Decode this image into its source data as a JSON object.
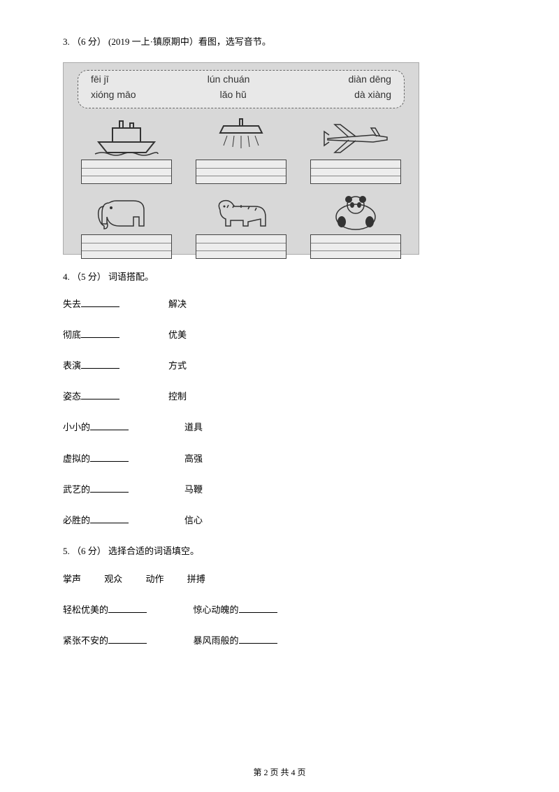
{
  "q3": {
    "header": "3. （6 分） (2019 一上·镇原期中）看图，选写音节。",
    "pinyin": {
      "r1a": "fēi jī",
      "r1b": "lún chuán",
      "r1c": "diàn dēng",
      "r2a": "xióng māo",
      "r2b": "lǎo hǔ",
      "r2c": "dà xiàng"
    }
  },
  "q4": {
    "header": "4. （5 分） 词语搭配。",
    "rows": [
      {
        "left": "失去",
        "right": "解决"
      },
      {
        "left": "彻底",
        "right": "优美"
      },
      {
        "left": "表演",
        "right": "方式"
      },
      {
        "left": "姿态",
        "right": "控制"
      },
      {
        "left": "小小的",
        "right": "道具"
      },
      {
        "left": "虚拟的",
        "right": "高强"
      },
      {
        "left": "武艺的",
        "right": "马鞭"
      },
      {
        "left": "必胜的",
        "right": "信心"
      }
    ]
  },
  "q5": {
    "header": "5. （6 分） 选择合适的词语填空。",
    "bank": [
      "掌声",
      "观众",
      "动作",
      "拼搏"
    ],
    "fills": [
      {
        "a": "轻松优美的",
        "b": "惊心动魄的"
      },
      {
        "a": "紧张不安的",
        "b": "暴风雨般的"
      }
    ]
  },
  "footer": "第 2 页 共 4 页",
  "colors": {
    "text": "#000000",
    "bg": "#ffffff",
    "photo_bg": "#d8d8d8",
    "box_border": "#444444"
  }
}
